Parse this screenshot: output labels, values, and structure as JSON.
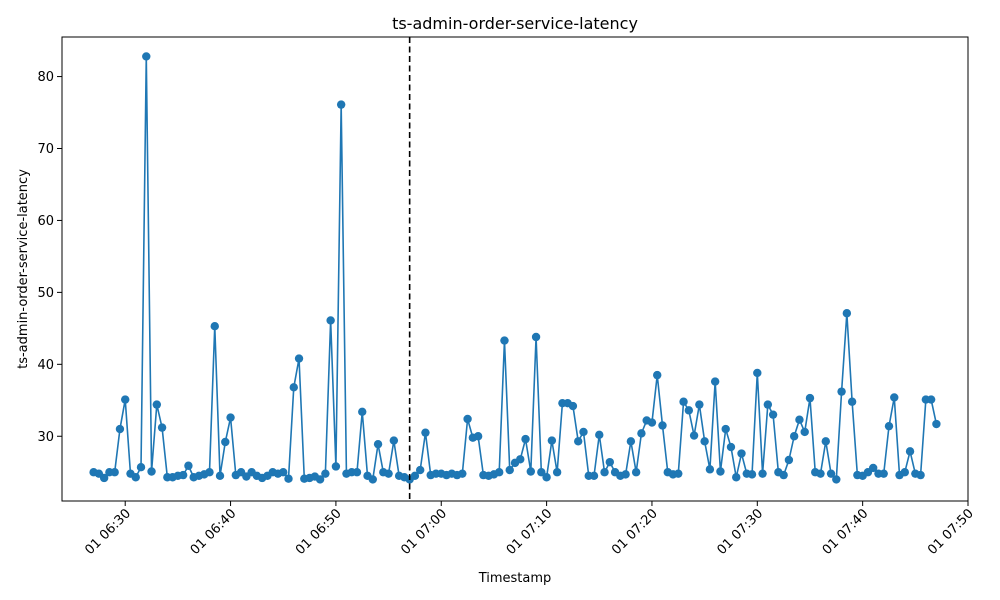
{
  "chart_data": {
    "type": "line",
    "title": "ts-admin-order-service-latency",
    "xlabel": "Timestamp",
    "ylabel": "ts-admin-order-service-latency",
    "x_start": "2024-01-01 06:27",
    "x_step_minutes": 0.5,
    "xlim": [
      "2024-01-01 06:24",
      "2024-01-01 07:50"
    ],
    "ylim": [
      21,
      85.5
    ],
    "x_ticks": [
      "01 06:30",
      "01 06:40",
      "01 06:50",
      "01 07:00",
      "01 07:10",
      "01 07:20",
      "01 07:30",
      "01 07:40",
      "01 07:50"
    ],
    "y_ticks": [
      "30",
      "40",
      "50",
      "60",
      "70",
      "80"
    ],
    "marker_line": {
      "x": "2024-01-01 06:57",
      "style": "dashed"
    },
    "series": [
      {
        "color": "#1f77b4",
        "values": [
          25.0,
          24.8,
          24.2,
          25.0,
          25.0,
          31.0,
          35.1,
          24.8,
          24.3,
          25.7,
          82.8,
          25.1,
          34.4,
          31.2,
          24.3,
          24.3,
          24.5,
          24.6,
          25.9,
          24.3,
          24.5,
          24.7,
          25.0,
          45.3,
          24.5,
          29.2,
          32.6,
          24.6,
          25.0,
          24.4,
          25.0,
          24.5,
          24.2,
          24.5,
          25.0,
          24.8,
          25.0,
          24.1,
          36.8,
          40.8,
          24.1,
          24.2,
          24.4,
          24.0,
          24.8,
          46.1,
          25.8,
          76.1,
          24.8,
          25.0,
          25.0,
          33.4,
          24.5,
          24.0,
          28.9,
          25.0,
          24.8,
          29.4,
          24.5,
          24.3,
          24.0,
          24.5,
          25.3,
          30.5,
          24.6,
          24.8,
          24.8,
          24.6,
          24.8,
          24.6,
          24.8,
          32.4,
          29.8,
          30.0,
          24.6,
          24.5,
          24.7,
          25.0,
          43.3,
          25.3,
          26.3,
          26.8,
          29.6,
          25.1,
          43.8,
          25.0,
          24.3,
          29.4,
          25.0,
          34.6,
          34.6,
          34.2,
          29.3,
          30.6,
          24.5,
          24.5,
          30.2,
          25.0,
          26.4,
          25.0,
          24.5,
          24.7,
          29.3,
          25.0,
          30.4,
          32.2,
          31.9,
          38.5,
          31.5,
          25.0,
          24.7,
          24.8,
          34.8,
          33.6,
          30.1,
          34.4,
          29.3,
          25.4,
          37.6,
          25.1,
          31.0,
          28.5,
          24.3,
          27.6,
          24.8,
          24.7,
          38.8,
          24.8,
          34.4,
          33.0,
          25.0,
          24.6,
          26.7,
          30.0,
          32.3,
          30.6,
          35.3,
          25.0,
          24.8,
          29.3,
          24.8,
          24.0,
          36.2,
          47.1,
          34.8,
          24.6,
          24.5,
          25.0,
          25.6,
          24.8,
          24.8,
          31.4,
          35.4,
          24.6,
          25.0,
          27.9,
          24.8,
          24.6,
          35.1,
          35.1,
          31.7
        ]
      }
    ]
  }
}
